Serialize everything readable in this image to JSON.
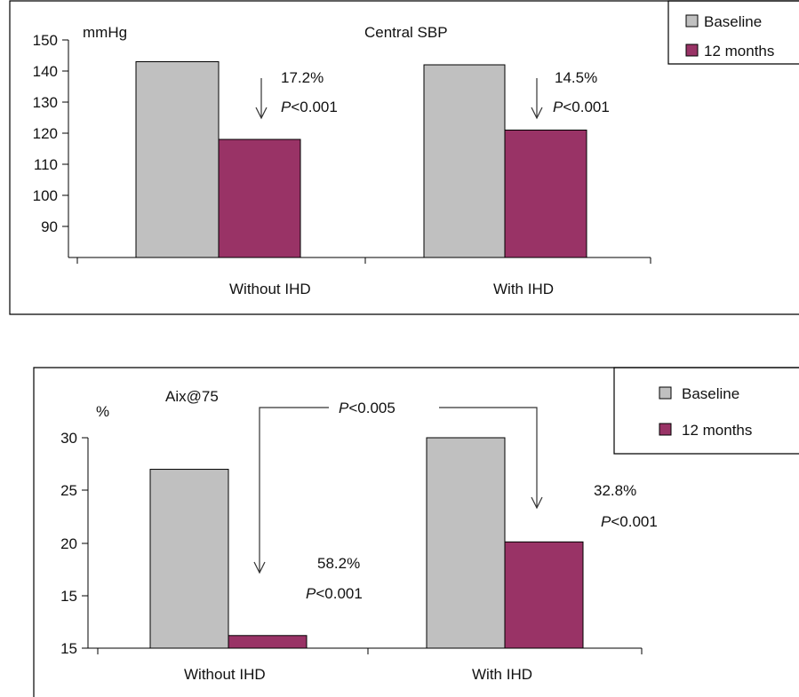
{
  "chart_data": [
    {
      "type": "bar",
      "title": "Central SBP",
      "ylabel": "mmHg",
      "ylim": [
        80,
        150
      ],
      "yticks": [
        "150",
        "140",
        "130",
        "120",
        "110",
        "100",
        "90"
      ],
      "categories": [
        "Without IHD",
        "With IHD"
      ],
      "series": [
        {
          "name": "Baseline",
          "values": [
            143,
            142
          ],
          "color": "#c0c0c0"
        },
        {
          "name": "12 months",
          "values": [
            118,
            121
          ],
          "color": "#993366"
        }
      ],
      "annotations": [
        {
          "pct": "17.2%",
          "p_italic": "P",
          "p_rest": "<0.001"
        },
        {
          "pct": "14.5%",
          "p_italic": "P",
          "p_rest": "<0.001"
        }
      ],
      "legend": "top-right",
      "grid": false
    },
    {
      "type": "bar",
      "title": "Aix@75",
      "ylabel": "%",
      "ylim": [
        10,
        30
      ],
      "yticks": [
        "30",
        "25",
        "20",
        "15",
        "15"
      ],
      "categories": [
        "Without IHD",
        "With IHD"
      ],
      "series": [
        {
          "name": "Baseline",
          "values": [
            27,
            30
          ],
          "color": "#c0c0c0"
        },
        {
          "name": "12 months",
          "values": [
            11.2,
            20.1
          ],
          "color": "#993366"
        }
      ],
      "annotations": [
        {
          "pct": "58.2%",
          "p_italic": "P",
          "p_rest": "<0.001"
        },
        {
          "pct": "32.8%",
          "p_italic": "P",
          "p_rest": "<0.001"
        }
      ],
      "comparison": {
        "p_italic": "P",
        "p_rest": "<0.005"
      },
      "legend": "top-right",
      "grid": false
    }
  ]
}
